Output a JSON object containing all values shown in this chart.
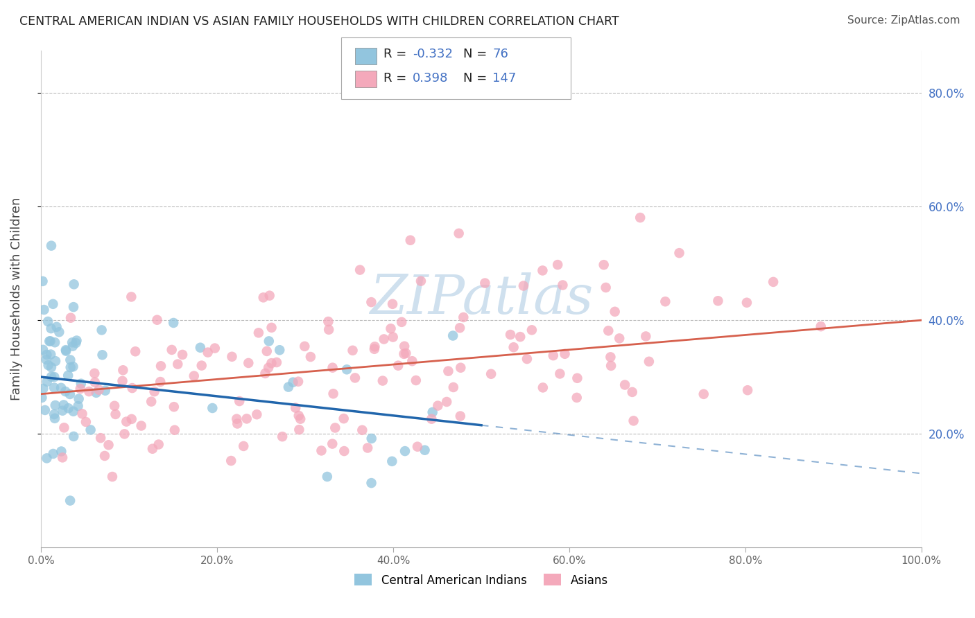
{
  "title": "CENTRAL AMERICAN INDIAN VS ASIAN FAMILY HOUSEHOLDS WITH CHILDREN CORRELATION CHART",
  "source": "Source: ZipAtlas.com",
  "ylabel": "Family Households with Children",
  "blue_color": "#92c5de",
  "pink_color": "#f4a9bb",
  "blue_line_color": "#2166ac",
  "pink_line_color": "#d6604d",
  "watermark_color": "#cfe0ee",
  "background_color": "#ffffff",
  "grid_color": "#cccccc",
  "blue_R": -0.332,
  "blue_N": 76,
  "pink_R": 0.398,
  "pink_N": 147,
  "tick_color": "#4472c4",
  "title_color": "#222222",
  "source_color": "#555555"
}
